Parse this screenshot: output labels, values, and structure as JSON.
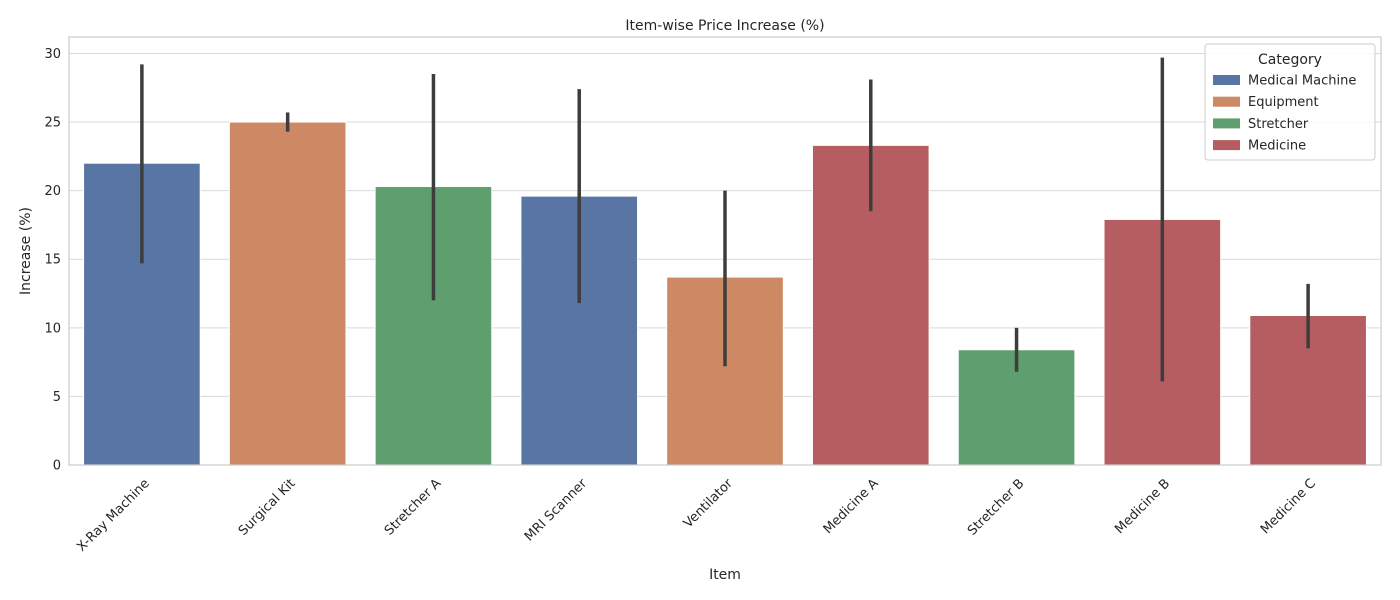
{
  "chart_data": {
    "type": "bar",
    "title": "Item-wise Price Increase (%)",
    "xlabel": "Item",
    "ylabel": "Increase (%)",
    "ylim": [
      0,
      31.2
    ],
    "yticks": [
      0,
      5,
      10,
      15,
      20,
      25,
      30
    ],
    "grid": true,
    "legend": {
      "title": "Category",
      "placement": "top-right",
      "entries": [
        {
          "name": "Medical Machine",
          "color": "#5875a4"
        },
        {
          "name": "Equipment",
          "color": "#cc8963"
        },
        {
          "name": "Stretcher",
          "color": "#5f9e6e"
        },
        {
          "name": "Medicine",
          "color": "#b55d60"
        }
      ]
    },
    "categories": [
      "X-Ray Machine",
      "Surgical Kit",
      "Stretcher A",
      "MRI Scanner",
      "Ventilator",
      "Medicine A",
      "Stretcher B",
      "Medicine B",
      "Medicine C"
    ],
    "bars": [
      {
        "category": "Medical Machine",
        "value": 22.0,
        "err_low": 14.7,
        "err_high": 29.2
      },
      {
        "category": "Equipment",
        "value": 25.0,
        "err_low": 24.3,
        "err_high": 25.7
      },
      {
        "category": "Stretcher",
        "value": 20.3,
        "err_low": 12.0,
        "err_high": 28.5
      },
      {
        "category": "Medical Machine",
        "value": 19.6,
        "err_low": 11.8,
        "err_high": 27.4
      },
      {
        "category": "Equipment",
        "value": 13.7,
        "err_low": 7.2,
        "err_high": 20.0
      },
      {
        "category": "Medicine",
        "value": 23.3,
        "err_low": 18.5,
        "err_high": 28.1
      },
      {
        "category": "Stretcher",
        "value": 8.4,
        "err_low": 6.8,
        "err_high": 10.0
      },
      {
        "category": "Medicine",
        "value": 17.9,
        "err_low": 6.1,
        "err_high": 29.7
      },
      {
        "category": "Medicine",
        "value": 10.9,
        "err_low": 8.5,
        "err_high": 13.2
      }
    ]
  }
}
